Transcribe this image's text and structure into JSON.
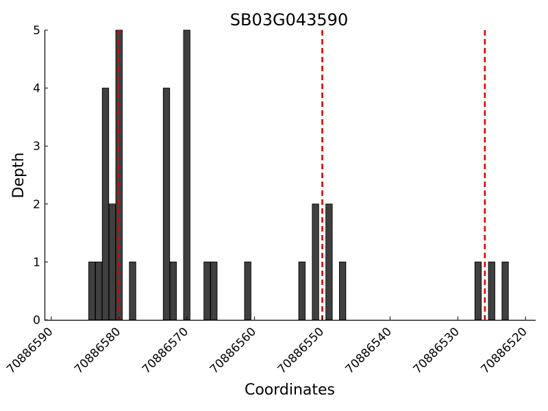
{
  "chart_data": {
    "type": "bar",
    "title": "SB03G043590",
    "xlabel": "Coordinates",
    "ylabel": "Depth",
    "xlim": [
      70886591.0,
      70886518.5
    ],
    "ylim": [
      0,
      5
    ],
    "x_inverted": true,
    "grid": false,
    "bar_color": "#404040",
    "marker_color": "#dd0000",
    "x_ticks": [
      70886590,
      70886580,
      70886570,
      70886560,
      70886550,
      70886540,
      70886530,
      70886520
    ],
    "x_tick_labels": [
      "70886590",
      "70886580",
      "70886570",
      "70886560",
      "70886550",
      "70886540",
      "70886530",
      "70886520"
    ],
    "y_ticks": [
      0,
      1,
      2,
      3,
      4,
      5
    ],
    "y_tick_labels": [
      "0",
      "1",
      "2",
      "3",
      "4",
      "5"
    ],
    "bars": [
      {
        "x": 70886584,
        "y": 1
      },
      {
        "x": 70886583,
        "y": 1
      },
      {
        "x": 70886582,
        "y": 4
      },
      {
        "x": 70886581,
        "y": 2
      },
      {
        "x": 70886580,
        "y": 5
      },
      {
        "x": 70886578,
        "y": 1
      },
      {
        "x": 70886573,
        "y": 4
      },
      {
        "x": 70886572,
        "y": 1
      },
      {
        "x": 70886570,
        "y": 5
      },
      {
        "x": 70886567,
        "y": 1
      },
      {
        "x": 70886566,
        "y": 1
      },
      {
        "x": 70886561,
        "y": 1
      },
      {
        "x": 70886553,
        "y": 1
      },
      {
        "x": 70886551,
        "y": 2
      },
      {
        "x": 70886549,
        "y": 2
      },
      {
        "x": 70886547,
        "y": 1
      },
      {
        "x": 70886527,
        "y": 1
      },
      {
        "x": 70886525,
        "y": 1
      },
      {
        "x": 70886523,
        "y": 1
      }
    ],
    "markers": [
      70886580,
      70886550,
      70886526
    ]
  }
}
